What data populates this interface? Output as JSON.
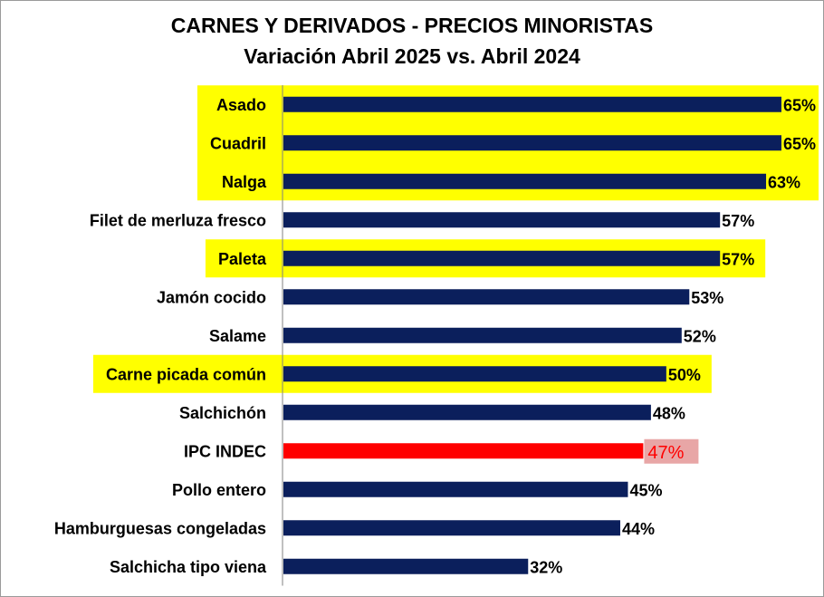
{
  "chart_data": {
    "type": "bar",
    "orientation": "horizontal",
    "title": "CARNES Y DERIVADOS - PRECIOS MINORISTAS",
    "subtitle": "Variación Abril 2025 vs. Abril 2024",
    "categories": [
      "Asado",
      "Cuadril",
      "Nalga",
      "Filet de merluza fresco",
      "Paleta",
      "Jamón cocido",
      "Salame",
      "Carne picada común",
      "Salchichón",
      "IPC INDEC",
      "Pollo entero",
      "Hamburguesas congeladas",
      "Salchicha tipo viena"
    ],
    "values": [
      65,
      65,
      63,
      57,
      57,
      53,
      52,
      50,
      48,
      47,
      45,
      44,
      32
    ],
    "value_labels": [
      "65%",
      "65%",
      "63%",
      "57%",
      "57%",
      "53%",
      "52%",
      "50%",
      "48%",
      "47%",
      "45%",
      "44%",
      "32%"
    ],
    "unit": "%",
    "xlim": [
      0,
      70
    ],
    "grid": false,
    "legend": "none",
    "highlighted_groups": [
      [
        0,
        2
      ],
      [
        4,
        4
      ],
      [
        7,
        7
      ]
    ],
    "reference_category": "IPC INDEC",
    "colors": {
      "bar": "#0b1f5c",
      "reference_bar": "#ff0000",
      "reference_label": "#ff0000",
      "reference_label_bg": "#e8a6a6",
      "highlight": "#ffff00",
      "axis": "#808080"
    }
  }
}
